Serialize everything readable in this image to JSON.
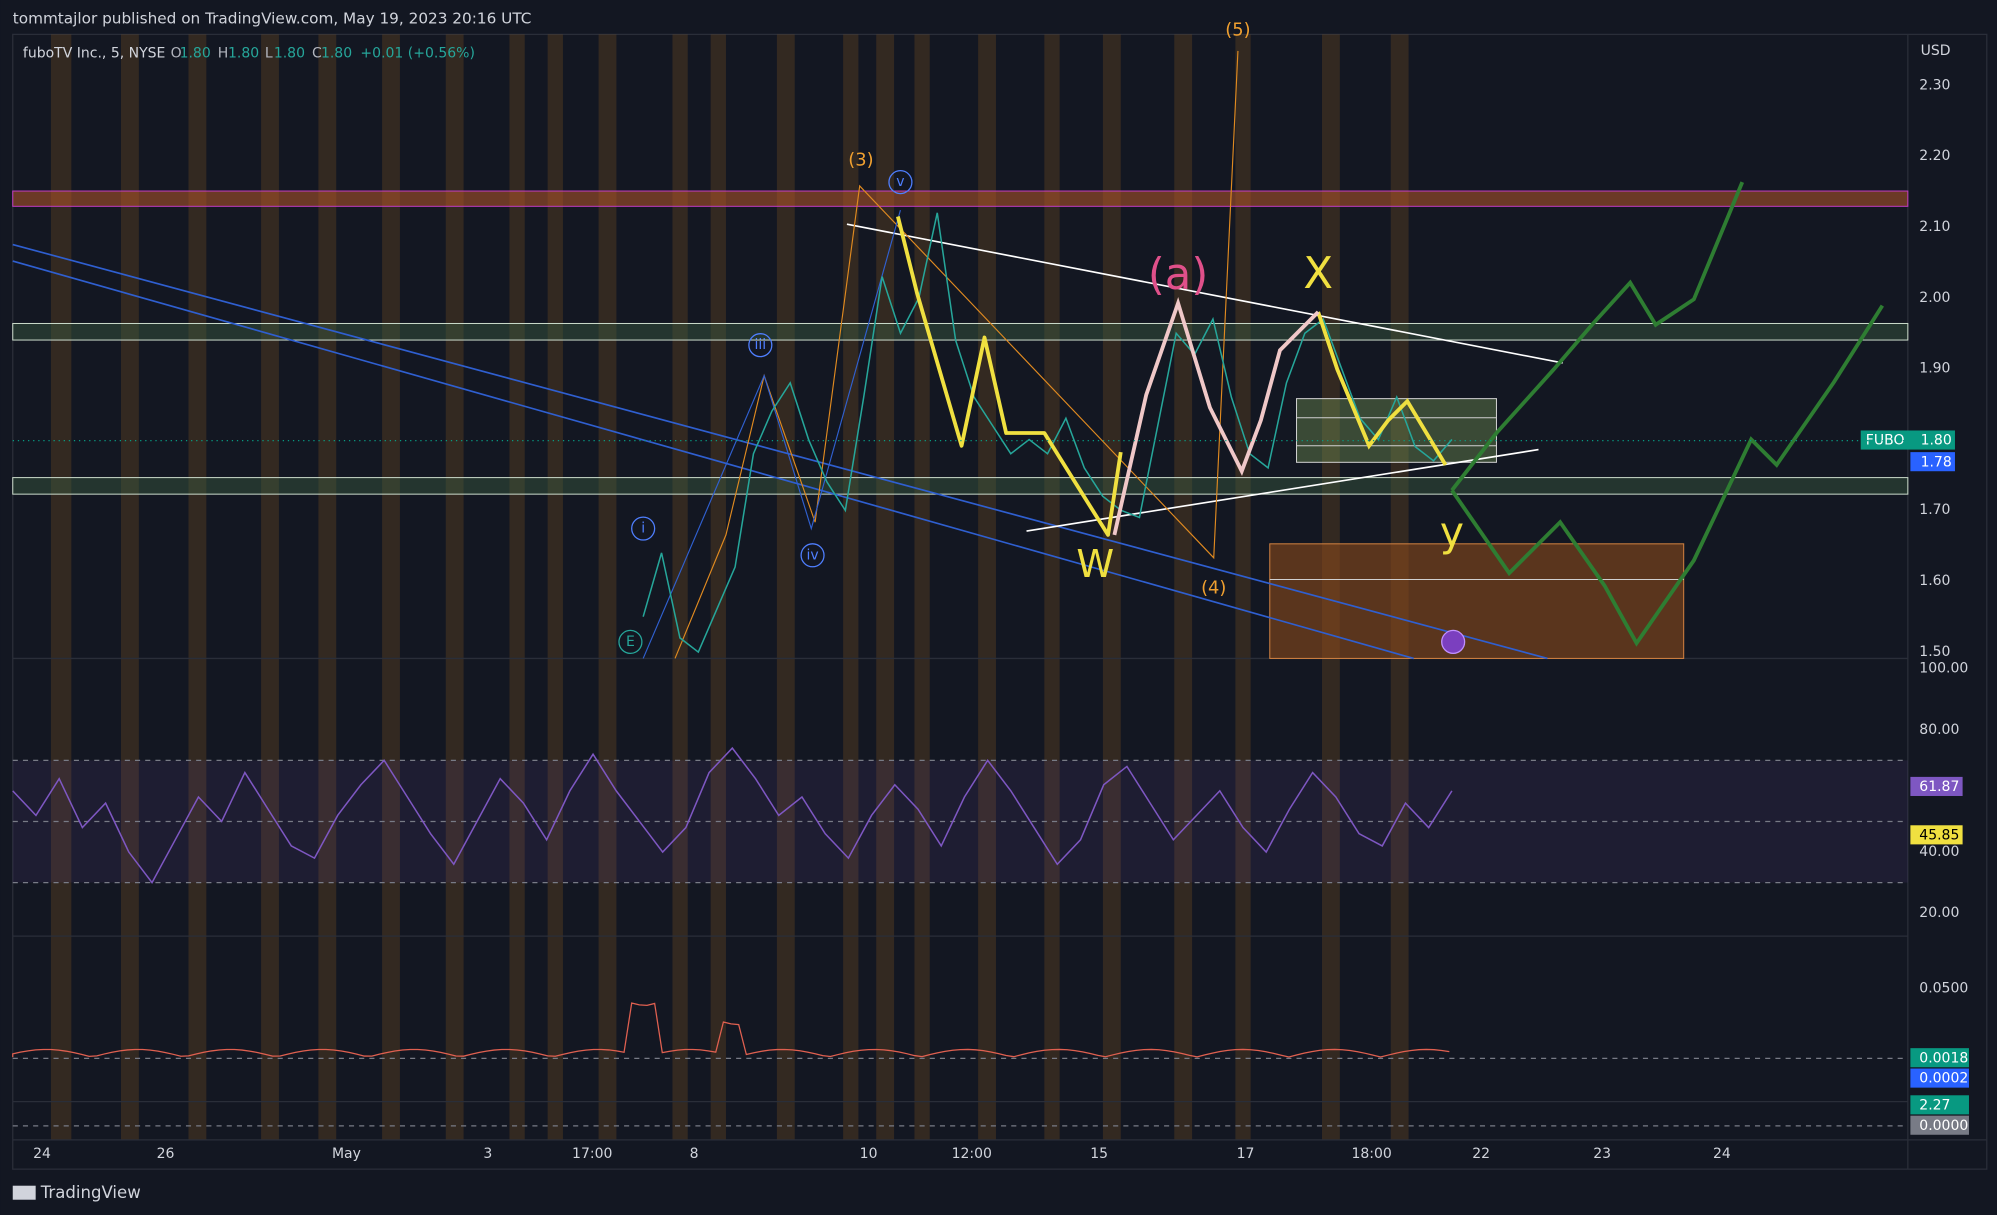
{
  "header": {
    "text": "tommtajlor published on TradingView.com, May 19, 2023 20:16 UTC"
  },
  "legend": {
    "symbol": "fuboTV Inc., 5, NYSE",
    "o_label": "O",
    "o": "1.80",
    "h_label": "H",
    "h": "1.80",
    "l_label": "L",
    "l": "1.80",
    "c_label": "C",
    "c": "1.80",
    "change": "+0.01 (+0.56%)"
  },
  "price_axis": {
    "currency": "USD",
    "ticks": [
      "2.30",
      "2.20",
      "2.10",
      "2.00",
      "1.90",
      "1.80",
      "1.70",
      "1.60",
      "1.50"
    ],
    "badge_symbol": "FUBO",
    "badge_last": "1.80",
    "badge_low": "1.78"
  },
  "price_series": {
    "values": [
      1.55,
      1.64,
      1.52,
      1.5,
      1.56,
      1.62,
      1.78,
      1.84,
      1.88,
      1.8,
      1.74,
      1.7,
      1.86,
      2.03,
      1.95,
      2.0,
      2.12,
      1.94,
      1.86,
      1.82,
      1.78,
      1.8,
      1.78,
      1.83,
      1.76,
      1.72,
      1.7,
      1.69,
      1.82,
      1.95,
      1.92,
      1.97,
      1.86,
      1.78,
      1.76,
      1.88,
      1.95,
      1.97,
      1.9,
      1.83,
      1.8,
      1.86,
      1.79,
      1.77,
      1.8
    ]
  },
  "annotations": {
    "w3": "(3)",
    "w4": "(4)",
    "w5": "(5)",
    "v": "v",
    "iii": "iii",
    "iv": "iv",
    "i": "i",
    "e": "E",
    "a": "(a)",
    "x": "X",
    "w": "W",
    "y": "y"
  },
  "rsi_axis": {
    "ticks": [
      "100.00",
      "80.00",
      "40.00",
      "20.00"
    ],
    "badge_rsi": "61.87",
    "badge_ma": "45.85"
  },
  "rsi_series": {
    "values": [
      60,
      52,
      64,
      48,
      56,
      40,
      30,
      44,
      58,
      50,
      66,
      54,
      42,
      38,
      52,
      62,
      70,
      58,
      46,
      36,
      50,
      64,
      56,
      44,
      60,
      72,
      60,
      50,
      40,
      48,
      66,
      74,
      64,
      52,
      58,
      46,
      38,
      52,
      62,
      54,
      42,
      58,
      70,
      60,
      48,
      36,
      44,
      62,
      68,
      56,
      44,
      52,
      60,
      48,
      40,
      54,
      66,
      58,
      46,
      42,
      56,
      48,
      60
    ]
  },
  "osc_axis": {
    "tick": "0.0500",
    "badges": [
      "0.0018",
      "0.0002",
      "2.27",
      "0.0000"
    ]
  },
  "time_axis": {
    "labels": [
      "24",
      "26",
      "May",
      "3",
      "17:00",
      "8",
      "10",
      "12:00",
      "15",
      "17",
      "18:00",
      "22",
      "23",
      "24"
    ]
  },
  "footer": {
    "brand": "TradingView"
  }
}
